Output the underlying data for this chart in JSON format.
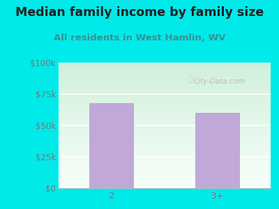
{
  "title": "Median family income by family size",
  "subtitle": "All residents in West Hamlin, WV",
  "categories": [
    "2",
    "3+"
  ],
  "values": [
    68000,
    60000
  ],
  "bar_color": "#c0a8d8",
  "bar_width": 0.42,
  "ylim": [
    0,
    100000
  ],
  "yticks": [
    0,
    25000,
    50000,
    75000,
    100000
  ],
  "ytick_labels": [
    "$0",
    "$25k",
    "$50k",
    "$75k",
    "$100k"
  ],
  "background_color": "#00eaea",
  "plot_bg_color_topleft": "#d0eed8",
  "plot_bg_color_bottomright": "#f8fffe",
  "title_color": "#222222",
  "subtitle_color": "#3a9090",
  "tick_color": "#777777",
  "watermark": "City-Data.com",
  "title_fontsize": 12.5,
  "subtitle_fontsize": 9.5
}
